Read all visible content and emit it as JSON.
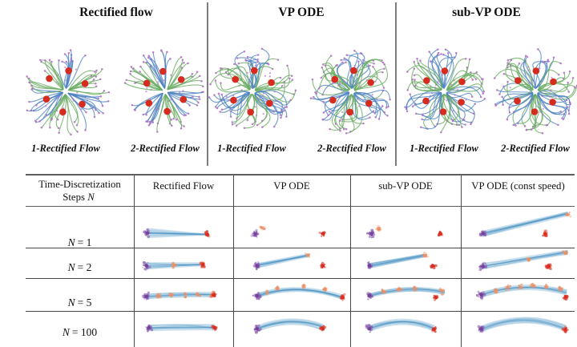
{
  "figure": {
    "top": {
      "groups": [
        {
          "label": "Rectified flow"
        },
        {
          "label": "VP ODE"
        },
        {
          "label": "sub-VP ODE"
        }
      ],
      "captions": [
        "1-Rectified Flow",
        "2-Rectified Flow",
        "1-Rectified Flow",
        "2-Rectified Flow",
        "1-Rectified Flow",
        "2-Rectified Flow"
      ]
    },
    "table": {
      "col0": {
        "line1": "Time-Discretization",
        "steps_word": "Steps",
        "n_var": "N"
      },
      "columns": [
        "Rectified Flow",
        "VP ODE",
        "sub-VP ODE",
        "VP ODE (const speed)"
      ],
      "rows": [
        {
          "var": "N",
          "eq": "= 1"
        },
        {
          "var": "N",
          "eq": "= 2"
        },
        {
          "var": "N",
          "eq": "= 5"
        },
        {
          "var": "N",
          "eq": "= 100"
        }
      ]
    },
    "colors": {
      "flow_blue": "#4f83c2",
      "flow_green": "#68ab60",
      "node_red": "#d62b1f",
      "tip_purple": "#b671c6",
      "band_blue": "#5b9ec9",
      "band_core": "#3f85bd",
      "cluster_purple": "#8b5cb0",
      "cluster_purple_dark": "#6f3f98",
      "dot_red": "#dd4335",
      "spray_orange": "#ea9066",
      "rule_gray": "#5e5e5e",
      "text": "#111111"
    }
  },
  "chart_data": [
    {
      "type": "scatter",
      "title": "Trajectories of learned ODEs on flower toy data: rectified flow vs VP ODE vs sub-VP ODE",
      "panels": [
        "Rectified flow",
        "VP ODE",
        "sub-VP ODE"
      ],
      "subpanel_labels": [
        "1-Rectified Flow",
        "2-Rectified Flow"
      ],
      "red_nodes_per_flower": 6,
      "flowers": [
        {
          "panel": 0,
          "label": "1-Rectified Flow",
          "style": "straight",
          "curl": 0.16,
          "seed": 11,
          "rot": -82,
          "r": 52
        },
        {
          "panel": 0,
          "label": "2-Rectified Flow",
          "style": "straight",
          "curl": 0.09,
          "seed": 23,
          "rot": -96,
          "r": 50
        },
        {
          "panel": 1,
          "label": "1-Rectified Flow",
          "style": "loopy",
          "curl": 0.42,
          "seed": 35,
          "rot": -85,
          "r": 52
        },
        {
          "panel": 1,
          "label": "2-Rectified Flow",
          "style": "loopy",
          "curl": 0.42,
          "seed": 47,
          "rot": -85,
          "r": 52
        },
        {
          "panel": 2,
          "label": "1-Rectified Flow",
          "style": "loopy",
          "curl": 0.4,
          "seed": 59,
          "rot": -88,
          "r": 51
        },
        {
          "panel": 2,
          "label": "2-Rectified Flow",
          "style": "loopy",
          "curl": 0.4,
          "seed": 71,
          "rot": -88,
          "r": 51
        }
      ]
    },
    {
      "type": "table",
      "columns": [
        "Rectified Flow",
        "VP ODE",
        "sub-VP ODE",
        "VP ODE (const speed)"
      ],
      "rows": [
        "N = 1",
        "N = 2",
        "N = 5",
        "N = 100"
      ],
      "cells": [
        [
          [
            [
              "cone",
              0.13,
              0.64,
              0.74,
              0.68,
              13,
              2
            ],
            [
              "cluster",
              0.13,
              0.64
            ],
            [
              "red",
              0.74,
              0.68
            ]
          ],
          [
            [
              "cluster",
              0.185,
              0.66
            ],
            [
              "spray",
              0.25,
              0.52
            ],
            [
              "red",
              0.77,
              0.66
            ]
          ],
          [
            [
              "cluster",
              0.19,
              0.66
            ],
            [
              "spray",
              0.25,
              0.54
            ],
            [
              "red",
              0.82,
              0.66
            ]
          ],
          [
            [
              "cone",
              0.19,
              0.66,
              0.94,
              0.14,
              8,
              6
            ],
            [
              "cluster",
              0.19,
              0.66
            ],
            [
              "spray",
              0.94,
              0.15
            ],
            [
              "red",
              0.74,
              0.66
            ]
          ]
        ],
        [
          [
            [
              "cone",
              0.12,
              0.6,
              0.7,
              0.55,
              9,
              5
            ],
            [
              "cluster",
              0.12,
              0.6
            ],
            [
              "spray",
              0.4,
              0.58
            ],
            [
              "spray",
              0.68,
              0.52
            ],
            [
              "red",
              0.7,
              0.56
            ]
          ],
          [
            [
              "cone",
              0.2,
              0.6,
              0.64,
              0.24,
              7,
              5
            ],
            [
              "cluster",
              0.2,
              0.6
            ],
            [
              "spray",
              0.64,
              0.23
            ],
            [
              "red",
              0.77,
              0.6
            ]
          ],
          [
            [
              "cone",
              0.17,
              0.6,
              0.67,
              0.25,
              7,
              5
            ],
            [
              "cluster",
              0.17,
              0.6
            ],
            [
              "spray",
              0.68,
              0.23
            ],
            [
              "red",
              0.75,
              0.6
            ]
          ],
          [
            [
              "cone",
              0.19,
              0.62,
              0.94,
              0.12,
              8,
              6
            ],
            [
              "cluster",
              0.19,
              0.62
            ],
            [
              "spray",
              0.6,
              0.35
            ],
            [
              "spray",
              0.92,
              0.13
            ],
            [
              "red",
              0.77,
              0.62
            ]
          ]
        ],
        [
          [
            [
              "arc",
              0.12,
              0.55,
              0.47,
              0.48,
              0.8,
              0.49,
              7
            ],
            [
              "cluster",
              0.12,
              0.55
            ],
            [
              "spray",
              0.25,
              0.52
            ],
            [
              "spray",
              0.38,
              0.5
            ],
            [
              "spray",
              0.52,
              0.49
            ],
            [
              "spray",
              0.65,
              0.49
            ],
            [
              "spray",
              0.79,
              0.49
            ],
            [
              "red",
              0.81,
              0.5
            ]
          ],
          [
            [
              "arc",
              0.2,
              0.53,
              0.55,
              0.1,
              0.94,
              0.57,
              6
            ],
            [
              "cluster",
              0.2,
              0.53
            ],
            [
              "spray",
              0.28,
              0.4
            ],
            [
              "spray",
              0.38,
              0.28
            ],
            [
              "spray",
              0.6,
              0.22
            ],
            [
              "spray",
              0.79,
              0.32
            ],
            [
              "red",
              0.94,
              0.58
            ]
          ],
          [
            [
              "arc",
              0.17,
              0.53,
              0.52,
              0.16,
              0.86,
              0.42,
              6
            ],
            [
              "cluster",
              0.17,
              0.53
            ],
            [
              "spray",
              0.3,
              0.4
            ],
            [
              "spray",
              0.44,
              0.31
            ],
            [
              "spray",
              0.59,
              0.28
            ],
            [
              "spray",
              0.84,
              0.38
            ],
            [
              "red",
              0.78,
              0.58
            ]
          ],
          [
            [
              "arc",
              0.175,
              0.5,
              0.55,
              0.05,
              0.93,
              0.42,
              7
            ],
            [
              "cluster",
              0.175,
              0.5
            ],
            [
              "spray",
              0.3,
              0.36
            ],
            [
              "spray",
              0.41,
              0.28
            ],
            [
              "spray",
              0.52,
              0.24
            ],
            [
              "spray",
              0.63,
              0.22
            ],
            [
              "spray",
              0.75,
              0.24
            ],
            [
              "spray",
              0.87,
              0.3
            ],
            [
              "red",
              0.92,
              0.56
            ]
          ]
        ],
        [
          [
            [
              "arc",
              0.145,
              0.47,
              0.49,
              0.44,
              0.82,
              0.45,
              8
            ],
            [
              "cluster",
              0.145,
              0.47
            ],
            [
              "red",
              0.82,
              0.46
            ]
          ],
          [
            [
              "arc",
              0.2,
              0.49,
              0.5,
              0.1,
              0.77,
              0.45,
              8
            ],
            [
              "cluster",
              0.2,
              0.49
            ],
            [
              "red",
              0.77,
              0.48
            ]
          ],
          [
            [
              "arc",
              0.17,
              0.49,
              0.48,
              0.1,
              0.76,
              0.48,
              8
            ],
            [
              "cluster",
              0.17,
              0.49
            ],
            [
              "red",
              0.76,
              0.51
            ]
          ],
          [
            [
              "arc",
              0.175,
              0.5,
              0.55,
              0.0,
              0.92,
              0.48,
              8
            ],
            [
              "cluster",
              0.175,
              0.5
            ],
            [
              "red",
              0.92,
              0.52
            ]
          ]
        ]
      ]
    }
  ]
}
